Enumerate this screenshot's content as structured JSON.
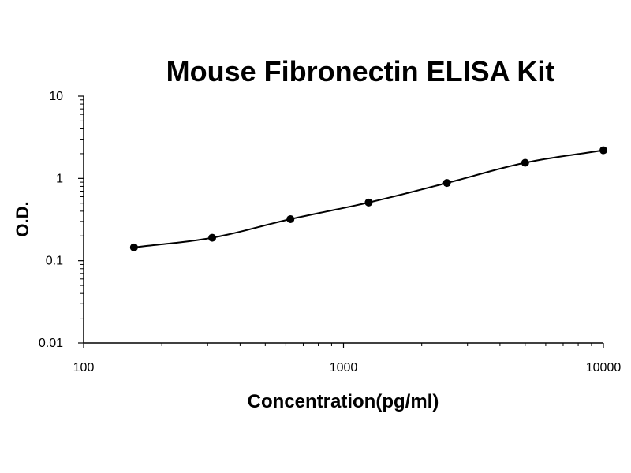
{
  "chart_data": {
    "type": "scatter",
    "title": "Mouse Fibronectin ELISA Kit",
    "xlabel": "Concentration(pg/ml)",
    "ylabel": "O.D.",
    "x_scale": "log",
    "y_scale": "log",
    "xlim": [
      100,
      10000
    ],
    "ylim": [
      0.01,
      10
    ],
    "x_ticks": [
      "100",
      "1000",
      "10000"
    ],
    "y_ticks": [
      "10",
      "1",
      "0.1",
      "0.01"
    ],
    "grid": false,
    "legend": "none",
    "series": [
      {
        "x": [
          156.25,
          312.5,
          625,
          1250,
          2500,
          5000,
          10000
        ],
        "y": [
          0.145,
          0.19,
          0.32,
          0.51,
          0.88,
          1.55,
          2.2
        ]
      }
    ],
    "fit_curve": true,
    "marker_color": "#000000",
    "line_color": "#000000"
  }
}
